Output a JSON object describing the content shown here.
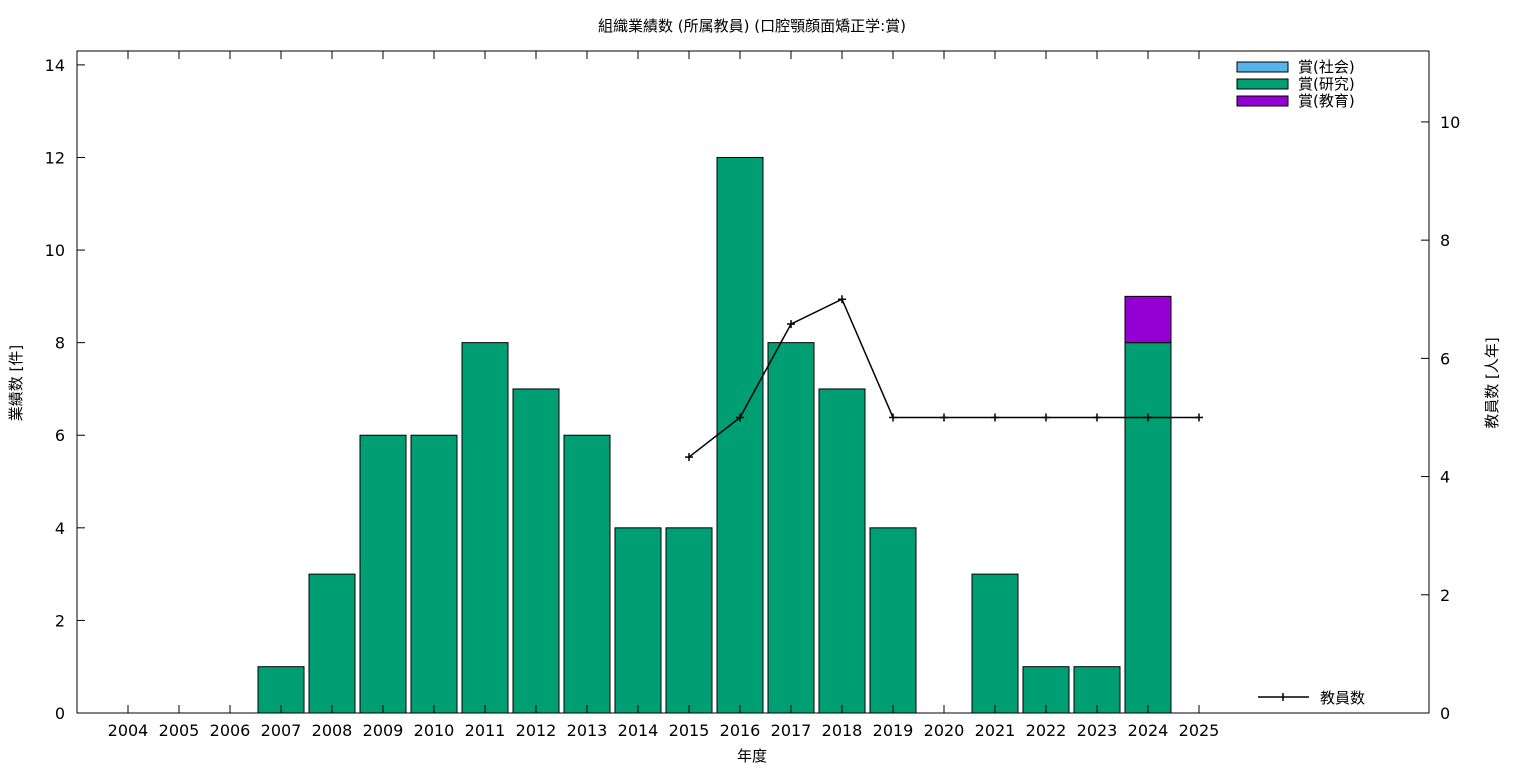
{
  "chart_data": {
    "type": "bar",
    "title": "組織業績数 (所属教員) (口腔顎顔面矯正学:賞)",
    "xlabel": "年度",
    "ylabel": "業績数 [件]",
    "y2label": "教員数 [人年]",
    "categories": [
      "2004",
      "2005",
      "2006",
      "2007",
      "2008",
      "2009",
      "2010",
      "2011",
      "2012",
      "2013",
      "2014",
      "2015",
      "2016",
      "2017",
      "2018",
      "2019",
      "2020",
      "2021",
      "2022",
      "2023",
      "2024",
      "2025"
    ],
    "ylim": [
      0,
      14.3
    ],
    "y2lim": [
      0,
      11.2
    ],
    "yticks": [
      0,
      2,
      4,
      6,
      8,
      10,
      12,
      14
    ],
    "y2ticks": [
      0,
      2,
      4,
      6,
      8,
      10
    ],
    "stacked": true,
    "grid": false,
    "legend_position": "top-right",
    "series": [
      {
        "name": "賞(社会)",
        "color": "#56b4e9",
        "values": [
          0,
          0,
          0,
          0,
          0,
          0,
          0,
          0,
          0,
          0,
          0,
          0,
          0,
          0,
          0,
          0,
          0,
          0,
          0,
          0,
          0,
          0
        ]
      },
      {
        "name": "賞(研究)",
        "color": "#009e73",
        "values": [
          0,
          0,
          0,
          1,
          3,
          6,
          6,
          8,
          7,
          6,
          4,
          4,
          12,
          8,
          7,
          4,
          0,
          3,
          1,
          1,
          8,
          0
        ]
      },
      {
        "name": "賞(教育)",
        "color": "#9400d3",
        "values": [
          0,
          0,
          0,
          0,
          0,
          0,
          0,
          0,
          0,
          0,
          0,
          0,
          0,
          0,
          0,
          0,
          0,
          0,
          0,
          0,
          1,
          0
        ]
      }
    ],
    "line_series": {
      "name": "教員数",
      "axis": "y2",
      "color": "#000000",
      "points": [
        {
          "x": "2015",
          "y": 4.33
        },
        {
          "x": "2016",
          "y": 5
        },
        {
          "x": "2017",
          "y": 6.58
        },
        {
          "x": "2018",
          "y": 7
        },
        {
          "x": "2019",
          "y": 5
        },
        {
          "x": "2020",
          "y": 5
        },
        {
          "x": "2021",
          "y": 5
        },
        {
          "x": "2022",
          "y": 5
        },
        {
          "x": "2023",
          "y": 5
        },
        {
          "x": "2024",
          "y": 5
        },
        {
          "x": "2025",
          "y": 5
        }
      ]
    }
  }
}
